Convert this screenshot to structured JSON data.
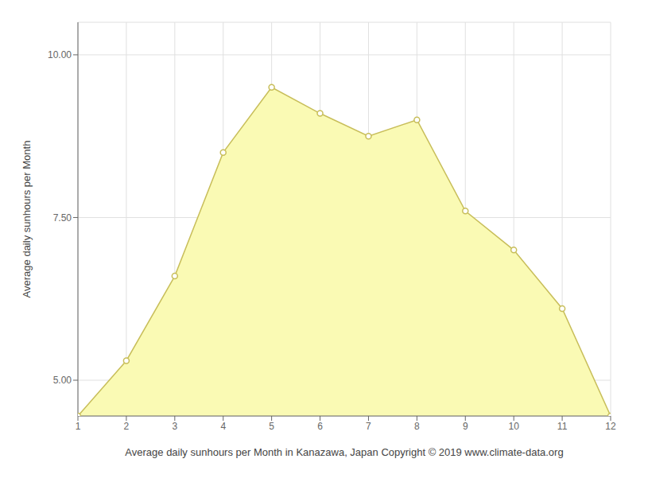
{
  "chart_data": {
    "type": "area",
    "x": [
      1,
      2,
      3,
      4,
      5,
      6,
      7,
      8,
      9,
      10,
      11,
      12
    ],
    "values": [
      4.45,
      5.3,
      6.6,
      8.5,
      9.5,
      9.1,
      8.75,
      9.0,
      7.6,
      7.0,
      6.1,
      4.45
    ],
    "color": "#C8BE5A",
    "marker": "circle",
    "xlabel": "Average daily sunhours per Month in Kanazawa, Japan Copyright © 2019 www.climate-data.org",
    "ylabel": "Average daily sunhours per Month",
    "xlim": [
      1,
      12
    ],
    "ylim": [
      4.45,
      10.5
    ],
    "xticks": [
      1,
      2,
      3,
      4,
      5,
      6,
      7,
      8,
      9,
      10,
      11,
      12
    ],
    "yticks": [
      {
        "value": 5.0,
        "label": "5.00"
      },
      {
        "value": 7.5,
        "label": "7.50"
      },
      {
        "value": 10.0,
        "label": "10.00"
      }
    ],
    "grid": true
  }
}
